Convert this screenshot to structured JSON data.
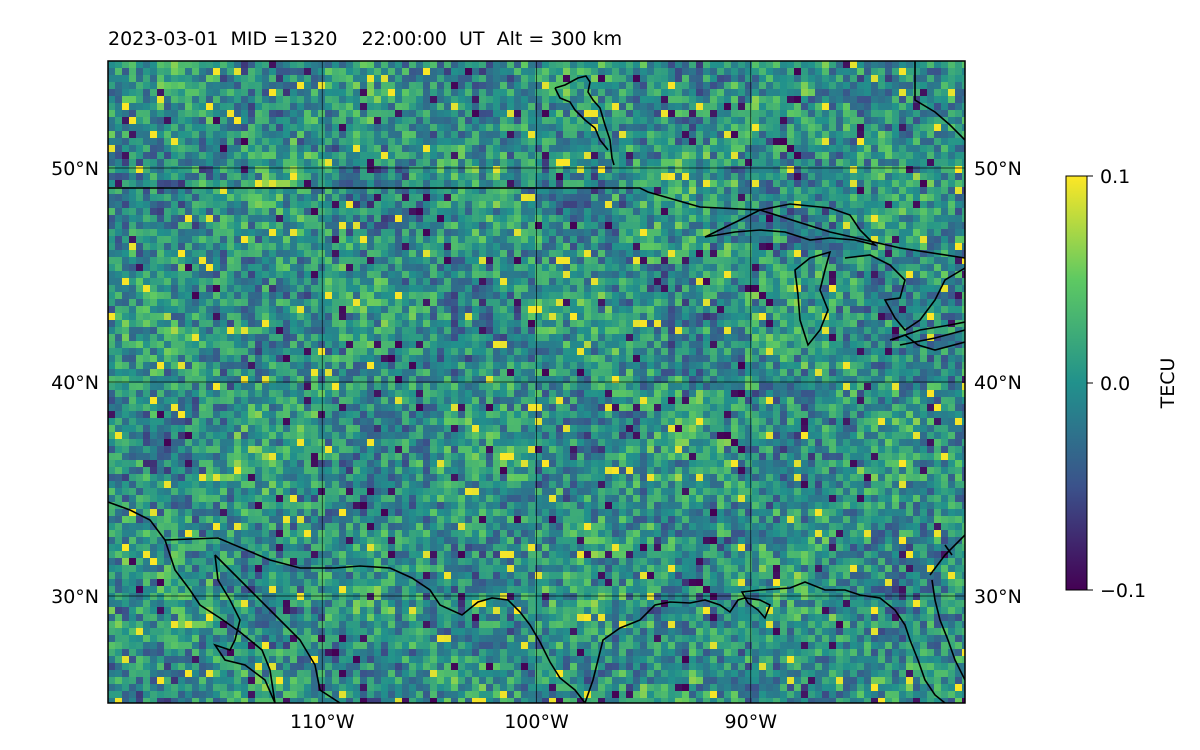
{
  "header": {
    "title": "2023-03-01  MID =1320    22:00:00  UT  Alt = 300 km"
  },
  "map": {
    "parameter": "TECU",
    "lat_range": [
      25,
      55
    ],
    "lon_range": [
      -120,
      -80
    ],
    "lat_ticks": [
      {
        "value": 30,
        "label": "30°N"
      },
      {
        "value": 40,
        "label": "40°N"
      },
      {
        "value": 50,
        "label": "50°N"
      }
    ],
    "lon_ticks": [
      {
        "value": -110,
        "label": "110°W"
      },
      {
        "value": -100,
        "label": "100°W"
      },
      {
        "value": -90,
        "label": "90°W"
      }
    ],
    "grid": true
  },
  "colorbar": {
    "label": "TECU",
    "min": -0.1,
    "max": 0.1,
    "ticks": [
      {
        "value": 0.1,
        "label": "0.1"
      },
      {
        "value": 0.0,
        "label": "0.0"
      },
      {
        "value": -0.1,
        "label": "−0.1"
      }
    ],
    "colormap": [
      "#440154",
      "#3b528b",
      "#21918c",
      "#5ec962",
      "#fde725"
    ]
  }
}
